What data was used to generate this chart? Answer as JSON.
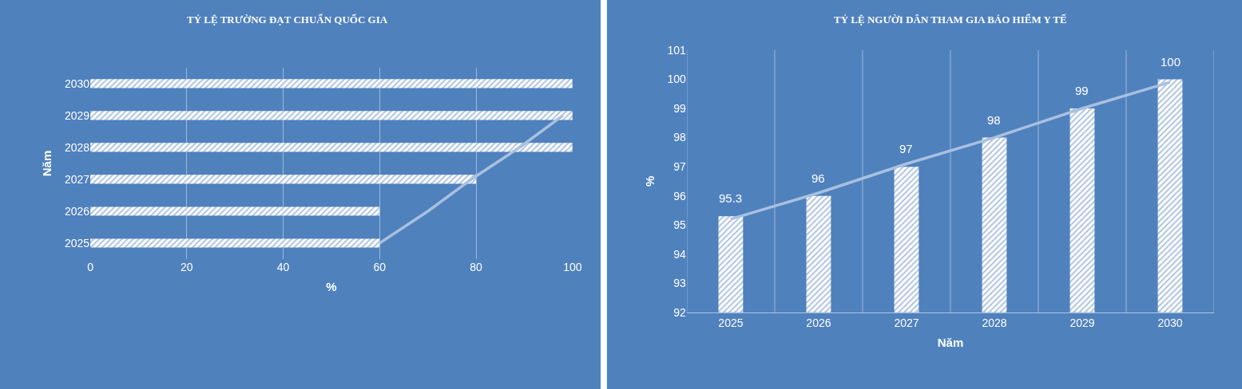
{
  "chart_data": [
    {
      "type": "bar",
      "orientation": "horizontal",
      "title": "TỶ LỆ TRƯỜNG ĐẠT CHUẨN QUỐC GIA",
      "xlabel": "%",
      "ylabel": "Năm",
      "categories": [
        "2030",
        "2029",
        "2028",
        "2027",
        "2026",
        "2025"
      ],
      "series": [
        {
          "color": "#ffffff",
          "values": [
            100,
            100,
            100,
            80,
            60,
            60
          ]
        },
        {
          "type": "line",
          "color": "#a9c0e0",
          "values": [
            null,
            98,
            89,
            79,
            70,
            60
          ]
        }
      ],
      "xlim": [
        0,
        100
      ],
      "xticks": [
        0,
        20,
        40,
        60,
        80,
        100
      ],
      "grid": "x"
    },
    {
      "type": "bar",
      "title": "TỶ LỆ NGƯỜI DÂN THAM GIA BẢO HIỂM Y TẾ",
      "xlabel": "Năm",
      "ylabel": "%",
      "categories": [
        "2025",
        "2026",
        "2027",
        "2028",
        "2029",
        "2030"
      ],
      "series": [
        {
          "color": "#ffffff",
          "values": [
            95.3,
            96,
            97,
            98,
            99,
            100
          ],
          "value_labels": [
            "95.3",
            "96",
            "97",
            "98",
            "99",
            "100"
          ]
        },
        {
          "type": "line",
          "color": "#a9c0e0",
          "values": [
            95.2,
            96.1,
            97.1,
            98,
            99,
            99.9
          ]
        }
      ],
      "ylim": [
        92,
        101
      ],
      "yticks": [
        92,
        93,
        94,
        95,
        96,
        97,
        98,
        99,
        100,
        101
      ],
      "grid": "x"
    }
  ]
}
